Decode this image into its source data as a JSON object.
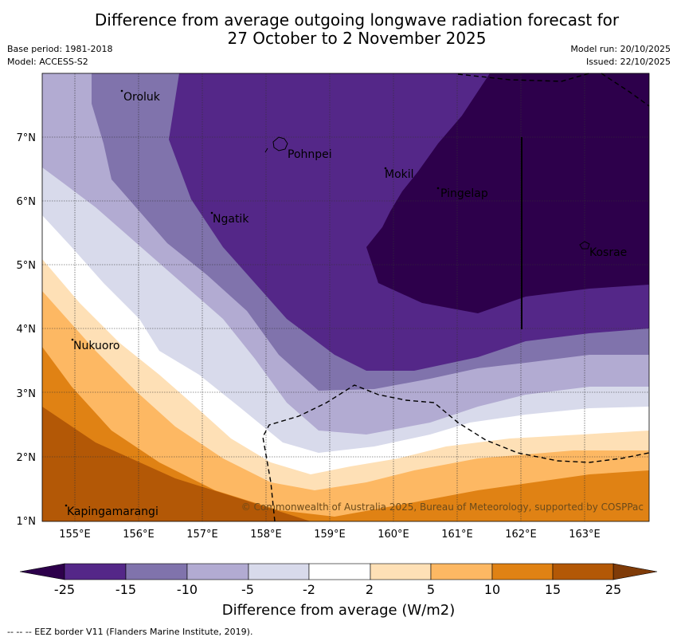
{
  "header": {
    "title_line1": "Difference from average outgoing longwave radiation forecast for",
    "title_line2": "27 October to 2 November 2025",
    "base_period": "Base period: 1981-2018",
    "model": "Model: ACCESS-S2",
    "model_run": "Model run: 20/10/2025",
    "issued": "Issued: 22/10/2025"
  },
  "map": {
    "lon_ticks": [
      "155°E",
      "156°E",
      "157°E",
      "158°E",
      "159°E",
      "160°E",
      "161°E",
      "162°E",
      "163°E"
    ],
    "lat_ticks": [
      "7°N",
      "6°N",
      "5°N",
      "4°N",
      "3°N",
      "2°N",
      "1°N"
    ],
    "places": [
      "Oroluk",
      "Pohnpei",
      "Mokil",
      "Pingelap",
      "Ngatik",
      "Kosrae",
      "Nukuoro",
      "Kapingamarangi"
    ],
    "copyright": "© Commonwealth of Australia 2025, Bureau of Meteorology, supported by COSPPac"
  },
  "colorbar": {
    "labels": [
      "-25",
      "-15",
      "-10",
      "-5",
      "-2",
      "2",
      "5",
      "10",
      "15",
      "25"
    ],
    "colors": [
      "#2d004b",
      "#542788",
      "#8073ac",
      "#b2abd2",
      "#d8daeb",
      "#ffffff",
      "#fee0b6",
      "#fdb863",
      "#e08214",
      "#b35806",
      "#7f3b08"
    ],
    "title": "Difference from average (W/m2)"
  },
  "footnote": "--  --  -- EEZ border V11 (Flanders Marine Institute, 2019)."
}
